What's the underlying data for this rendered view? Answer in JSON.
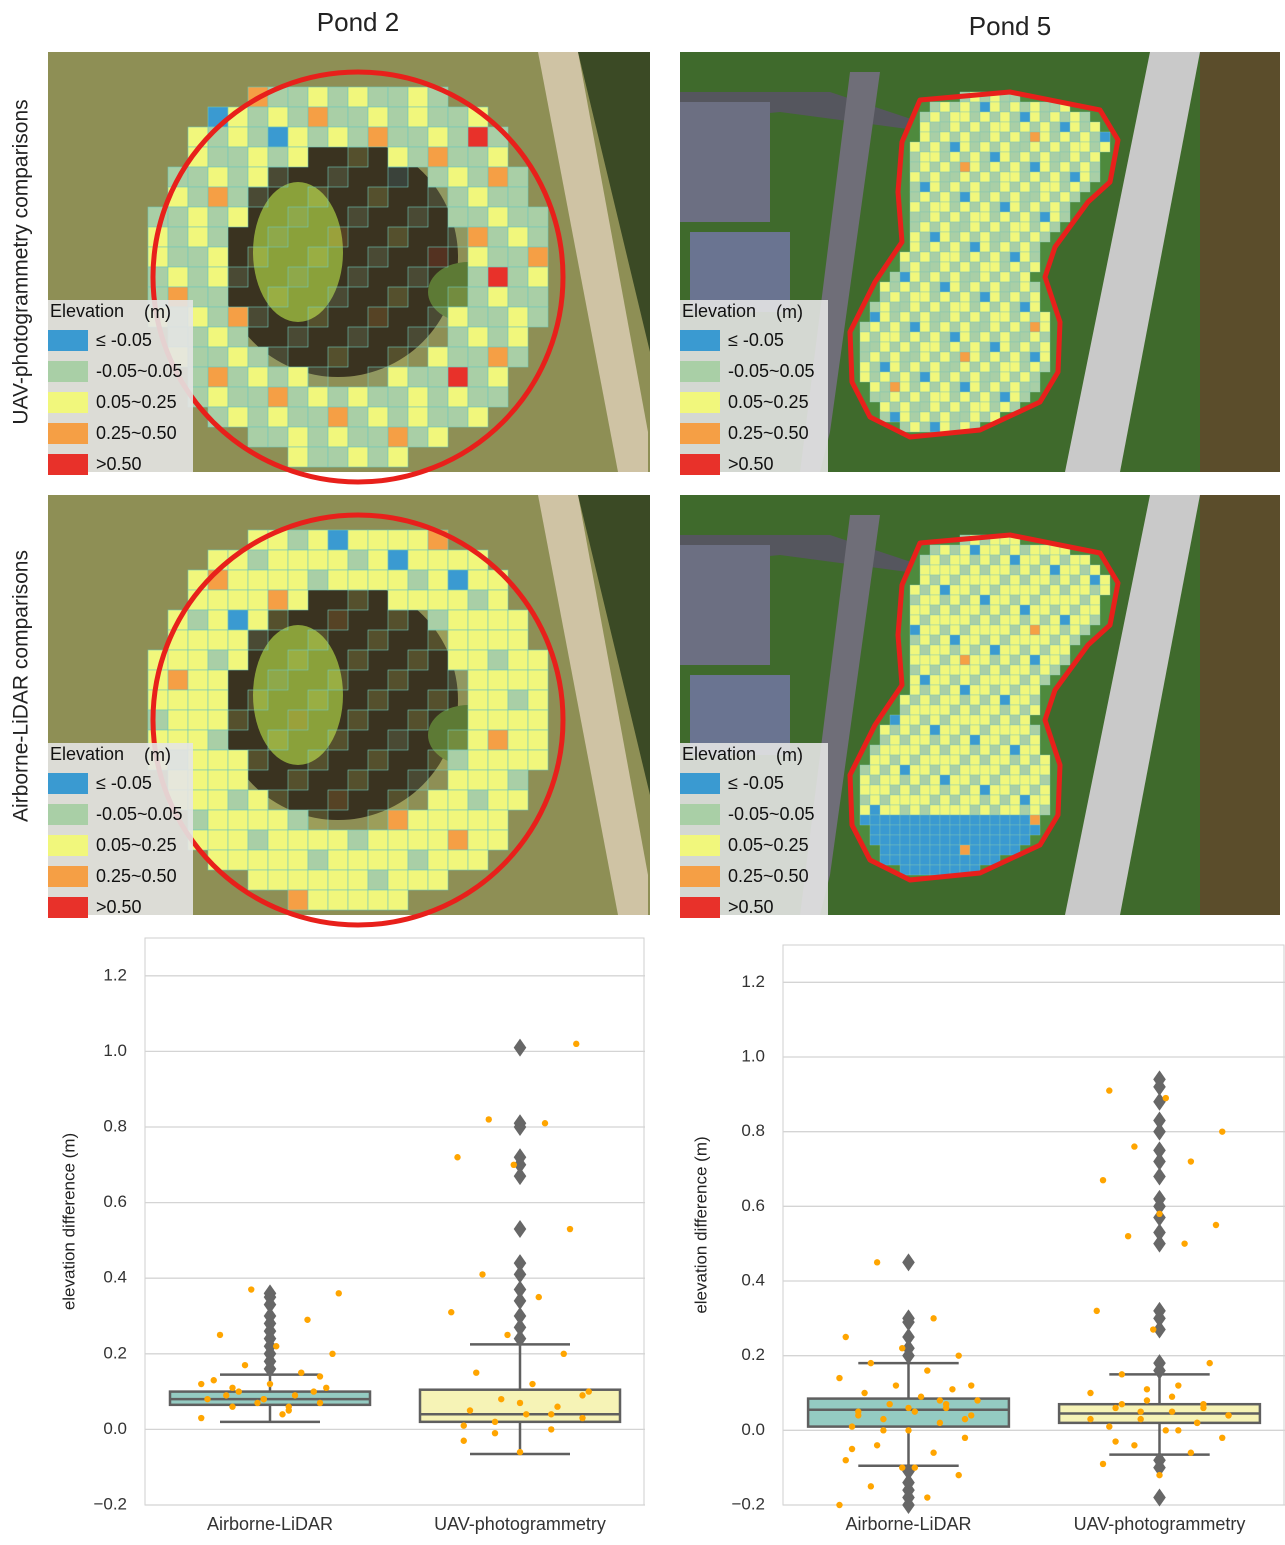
{
  "column_titles": [
    "Pond 2",
    "Pond 5"
  ],
  "row_titles": [
    "UAV-photogrammetry comparisons",
    "Airborne-LiDAR comparisons"
  ],
  "legend": {
    "title": "Elevation",
    "unit": "(m)",
    "items": [
      {
        "label": "≤ -0.05",
        "color": "#3a9ad1"
      },
      {
        "label": "-0.05~0.05",
        "color": "#a9cfa6"
      },
      {
        "label": "0.05~0.25",
        "color": "#f1f77c"
      },
      {
        "label": "0.25~0.50",
        "color": "#f59f45"
      },
      {
        "label": ">0.50",
        "color": "#e8312a"
      }
    ]
  },
  "chart_data": [
    {
      "type": "box",
      "ylabel": "elevation difference (m)",
      "categories": [
        "Airborne-LiDAR",
        "UAV-photogrammetry"
      ],
      "colors": [
        "#94cbc2",
        "#f6f3b6"
      ],
      "point_color": "#ffa500",
      "outlier_color": "#676767",
      "ylim": [
        -0.2,
        1.3
      ],
      "yticks": [
        {
          "value": -0.2,
          "label": "−0.2"
        },
        {
          "value": 0,
          "label": "0.0"
        },
        0.2,
        0.4,
        0.6,
        0.8,
        {
          "value": 1,
          "label": "1.0"
        },
        1.2
      ],
      "grid": true,
      "boxes": [
        {
          "whisker_low": 0.02,
          "q1": 0.065,
          "median": 0.08,
          "q3": 0.1,
          "whisker_high": 0.145,
          "outliers": [
            0.16,
            0.18,
            0.2,
            0.22,
            0.24,
            0.26,
            0.28,
            0.3,
            0.33,
            0.35,
            0.36
          ],
          "points": [
            0.03,
            0.05,
            0.06,
            0.07,
            0.08,
            0.08,
            0.09,
            0.1,
            0.11,
            0.12,
            0.13,
            0.15,
            0.17,
            0.2,
            0.22,
            0.25,
            0.29,
            0.37,
            0.36,
            0.04,
            0.09,
            0.1,
            0.07,
            0.12,
            0.06,
            0.11,
            0.14,
            0.08
          ]
        },
        {
          "whisker_low": -0.065,
          "q1": 0.02,
          "median": 0.04,
          "q3": 0.105,
          "whisker_high": 0.225,
          "outliers": [
            0.24,
            0.27,
            0.3,
            0.34,
            0.37,
            0.41,
            0.44,
            0.53,
            0.67,
            0.7,
            0.72,
            0.8,
            0.81,
            1.01
          ],
          "points": [
            -0.06,
            -0.03,
            0,
            0.02,
            0.03,
            0.04,
            0.05,
            0.06,
            0.08,
            0.1,
            0.12,
            0.15,
            0.2,
            0.25,
            0.31,
            0.35,
            0.41,
            0.53,
            0.7,
            0.72,
            0.81,
            0.82,
            1.02,
            0.07,
            0.01,
            0.04,
            -0.01,
            0.09
          ]
        }
      ]
    },
    {
      "type": "box",
      "ylabel": "elevation difference (m)",
      "categories": [
        "Airborne-LiDAR",
        "UAV-photogrammetry"
      ],
      "colors": [
        "#94cbc2",
        "#f6f3b6"
      ],
      "point_color": "#ffa500",
      "outlier_color": "#676767",
      "ylim": [
        -0.2,
        1.3
      ],
      "yticks": [
        {
          "value": -0.2,
          "label": "−0.2"
        },
        {
          "value": 0,
          "label": "0.0"
        },
        0.2,
        0.4,
        0.6,
        0.8,
        {
          "value": 1,
          "label": "1.0"
        },
        1.2
      ],
      "grid": true,
      "boxes": [
        {
          "whisker_low": -0.095,
          "q1": 0.01,
          "median": 0.055,
          "q3": 0.085,
          "whisker_high": 0.18,
          "outliers": [
            0.2,
            0.22,
            0.25,
            0.29,
            0.3,
            0.45,
            -0.11,
            -0.14,
            -0.16,
            -0.18,
            -0.2
          ],
          "points": [
            -0.2,
            -0.18,
            -0.15,
            -0.12,
            -0.1,
            -0.08,
            -0.06,
            -0.04,
            -0.02,
            0,
            0.01,
            0.02,
            0.03,
            0.04,
            0.05,
            0.05,
            0.06,
            0.07,
            0.08,
            0.09,
            0.1,
            0.11,
            0.12,
            0.14,
            0.16,
            0.18,
            0.2,
            0.22,
            0.25,
            0.3,
            0.45,
            0.03,
            0.06,
            -0.05,
            0.08,
            0.0,
            0.12,
            -0.1,
            0.04,
            0.07
          ]
        },
        {
          "whisker_low": -0.065,
          "q1": 0.02,
          "median": 0.045,
          "q3": 0.07,
          "whisker_high": 0.15,
          "outliers": [
            0.16,
            0.18,
            0.27,
            0.3,
            0.32,
            0.5,
            0.53,
            0.57,
            0.6,
            0.62,
            0.68,
            0.72,
            0.75,
            0.8,
            0.83,
            0.88,
            0.92,
            0.94,
            -0.08,
            -0.1,
            -0.18
          ],
          "points": [
            -0.12,
            -0.09,
            -0.06,
            -0.04,
            -0.02,
            0,
            0.01,
            0.02,
            0.03,
            0.04,
            0.05,
            0.06,
            0.07,
            0.08,
            0.1,
            0.12,
            0.15,
            0.18,
            0.27,
            0.32,
            0.5,
            0.52,
            0.55,
            0.58,
            0.67,
            0.72,
            0.76,
            0.8,
            0.89,
            0.91,
            0.02,
            0.05,
            0.04,
            0.09,
            -0.03,
            0.06,
            0.11,
            0.03,
            0.0,
            0.07
          ]
        }
      ]
    }
  ]
}
